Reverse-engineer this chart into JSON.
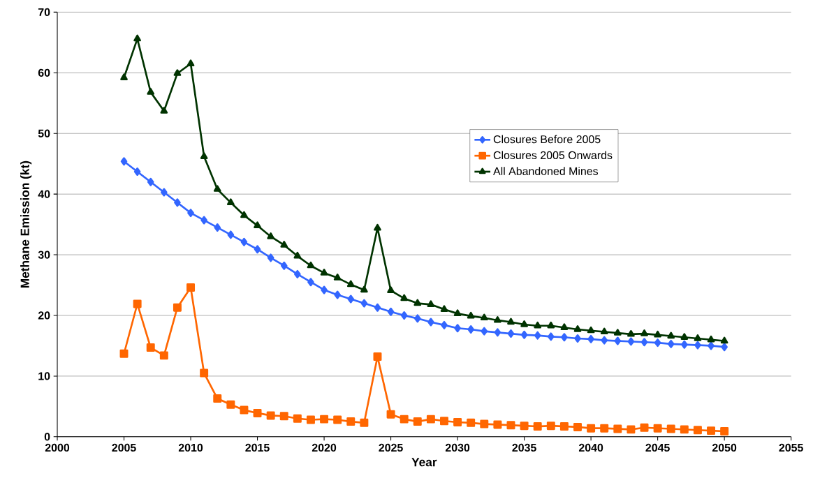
{
  "chart_data": {
    "type": "line",
    "xlabel": "Year",
    "ylabel": "Methane Emission (kt)",
    "x": [
      2005,
      2006,
      2007,
      2008,
      2009,
      2010,
      2011,
      2012,
      2013,
      2014,
      2015,
      2016,
      2017,
      2018,
      2019,
      2020,
      2021,
      2022,
      2023,
      2024,
      2025,
      2026,
      2027,
      2028,
      2029,
      2030,
      2031,
      2032,
      2033,
      2034,
      2035,
      2036,
      2037,
      2038,
      2039,
      2040,
      2041,
      2042,
      2043,
      2044,
      2045,
      2046,
      2047,
      2048,
      2049,
      2050
    ],
    "series": [
      {
        "name": "Closures Before 2005",
        "color": "#3366ff",
        "marker": "diamond",
        "values": [
          45.4,
          43.7,
          42.0,
          40.3,
          38.6,
          36.9,
          35.7,
          34.5,
          33.3,
          32.1,
          30.9,
          29.5,
          28.2,
          26.8,
          25.5,
          24.2,
          23.4,
          22.7,
          22.0,
          21.3,
          20.6,
          20.0,
          19.5,
          18.9,
          18.4,
          17.9,
          17.7,
          17.4,
          17.2,
          17.0,
          16.8,
          16.7,
          16.5,
          16.4,
          16.2,
          16.1,
          15.9,
          15.8,
          15.7,
          15.6,
          15.5,
          15.3,
          15.2,
          15.1,
          15.0,
          14.8
        ]
      },
      {
        "name": "Closures 2005 Onwards",
        "color": "#ff6600",
        "marker": "square",
        "values": [
          13.7,
          21.9,
          14.7,
          13.4,
          21.3,
          24.6,
          10.5,
          6.3,
          5.3,
          4.4,
          3.9,
          3.5,
          3.4,
          3.0,
          2.8,
          2.9,
          2.8,
          2.5,
          2.3,
          13.2,
          3.7,
          2.9,
          2.5,
          2.9,
          2.6,
          2.4,
          2.3,
          2.1,
          2.0,
          1.9,
          1.8,
          1.7,
          1.8,
          1.7,
          1.6,
          1.4,
          1.4,
          1.3,
          1.2,
          1.5,
          1.4,
          1.3,
          1.2,
          1.1,
          1.0,
          0.9
        ]
      },
      {
        "name": "All Abandoned Mines",
        "color": "#003300",
        "marker": "triangle",
        "values": [
          59.2,
          65.6,
          56.8,
          53.7,
          59.9,
          61.5,
          46.2,
          40.8,
          38.6,
          36.5,
          34.8,
          33.0,
          31.6,
          29.8,
          28.2,
          27.0,
          26.2,
          25.1,
          24.2,
          34.4,
          24.1,
          22.8,
          22.0,
          21.8,
          21.0,
          20.3,
          19.9,
          19.6,
          19.2,
          18.9,
          18.5,
          18.3,
          18.3,
          18.0,
          17.7,
          17.5,
          17.3,
          17.1,
          16.9,
          17.0,
          16.8,
          16.6,
          16.4,
          16.2,
          16.0,
          15.8
        ]
      }
    ],
    "xlim": [
      2000,
      2055
    ],
    "xticks": [
      2000,
      2005,
      2010,
      2015,
      2020,
      2025,
      2030,
      2035,
      2040,
      2045,
      2050,
      2055
    ],
    "ylim": [
      0,
      70
    ],
    "yticks": [
      0,
      10,
      20,
      30,
      40,
      50,
      60,
      70
    ],
    "grid": "y",
    "legend": "right",
    "line_style": "solid"
  }
}
